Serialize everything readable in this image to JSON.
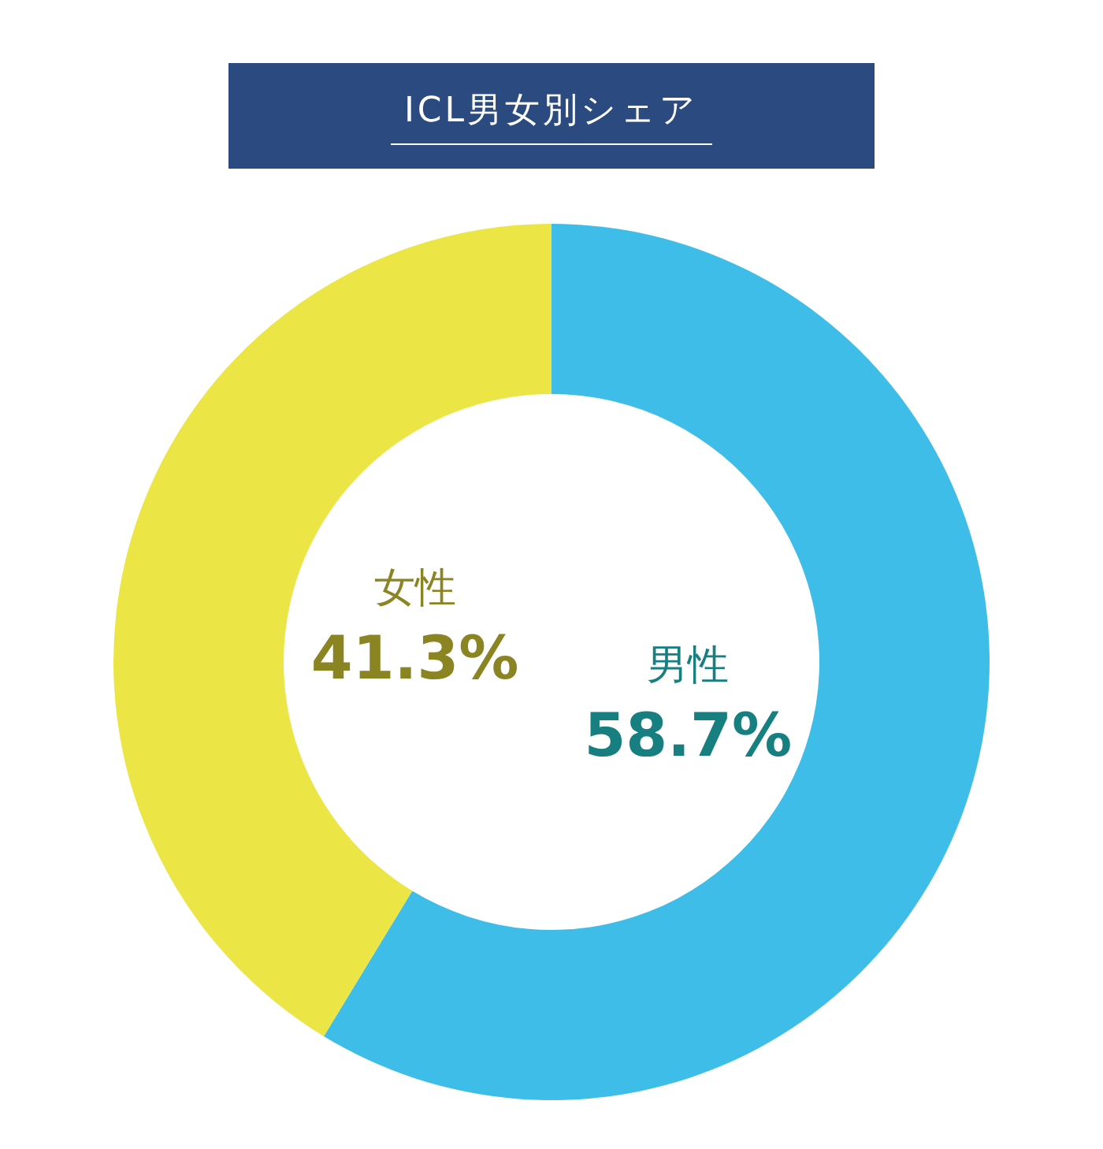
{
  "chart_data": {
    "type": "donut",
    "title": "ICL男女別シェア",
    "categories": [
      "男性",
      "女性"
    ],
    "values": [
      58.7,
      41.3
    ],
    "value_labels": [
      "58.7%",
      "41.3%"
    ],
    "colors": [
      "#3dbde8",
      "#ebe645"
    ]
  }
}
